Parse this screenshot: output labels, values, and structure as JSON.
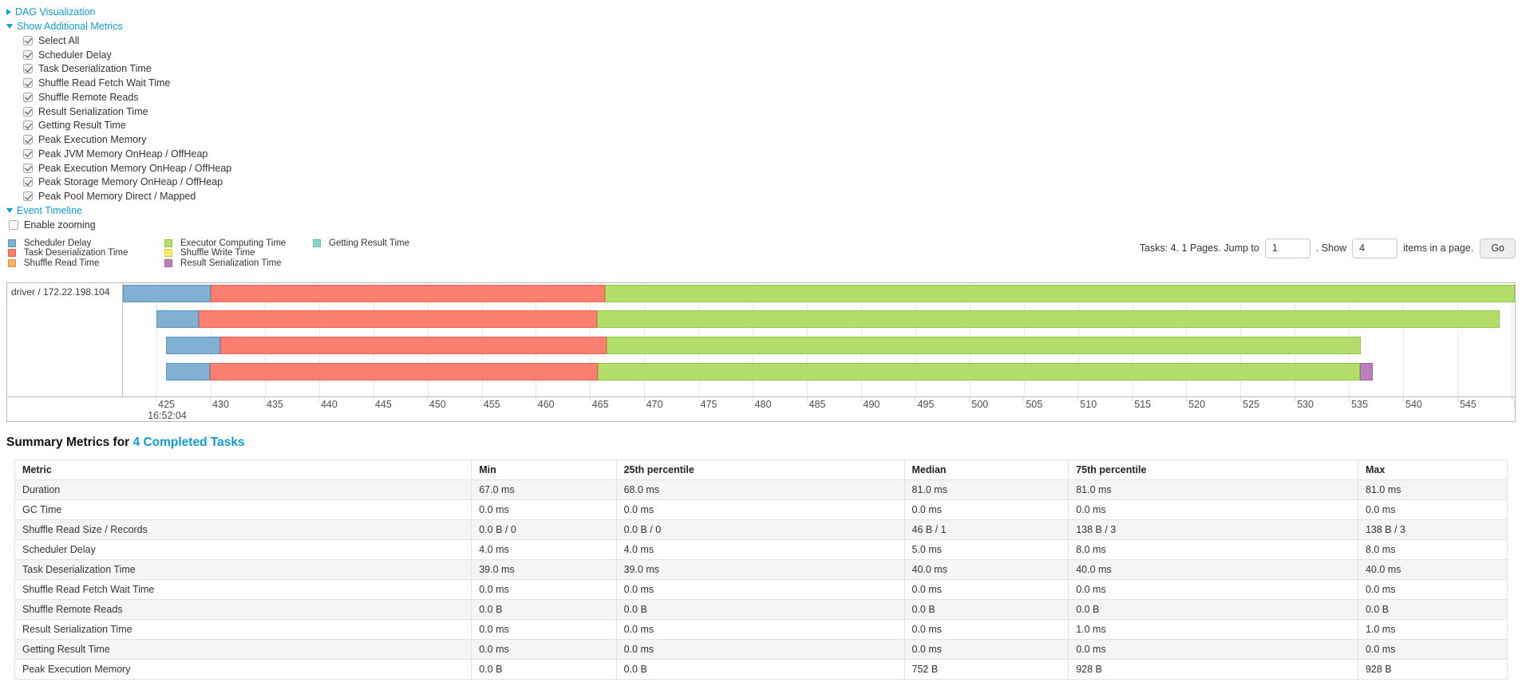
{
  "theme": {
    "link_color": "#0f9dd6"
  },
  "toggles": {
    "dag_label": "DAG Visualization",
    "metrics_label": "Show Additional Metrics",
    "timeline_label": "Event Timeline"
  },
  "metrics_panel": {
    "items": [
      {
        "label": "Select All",
        "checked": true
      },
      {
        "label": "Scheduler Delay",
        "checked": true
      },
      {
        "label": "Task Deserialization Time",
        "checked": true
      },
      {
        "label": "Shuffle Read Fetch Wait Time",
        "checked": true
      },
      {
        "label": "Shuffle Remote Reads",
        "checked": true
      },
      {
        "label": "Result Serialization Time",
        "checked": true
      },
      {
        "label": "Getting Result Time",
        "checked": true
      },
      {
        "label": "Peak Execution Memory",
        "checked": true
      },
      {
        "label": "Peak JVM Memory OnHeap / OffHeap",
        "checked": true
      },
      {
        "label": "Peak Execution Memory OnHeap / OffHeap",
        "checked": true
      },
      {
        "label": "Peak Storage Memory OnHeap / OffHeap",
        "checked": true
      },
      {
        "label": "Peak Pool Memory Direct / Mapped",
        "checked": true
      }
    ]
  },
  "enable_zooming": {
    "label": "Enable zooming",
    "checked": false
  },
  "legend": [
    {
      "key": "scheduler_delay",
      "label": "Scheduler Delay"
    },
    {
      "key": "task_deserialization",
      "label": "Task Deserialization Time"
    },
    {
      "key": "shuffle_read",
      "label": "Shuffle Read Time"
    },
    {
      "key": "executor_computing",
      "label": "Executor Computing Time"
    },
    {
      "key": "shuffle_write",
      "label": "Shuffle Write Time"
    },
    {
      "key": "result_serialization",
      "label": "Result Serialization Time"
    },
    {
      "key": "getting_result",
      "label": "Getting Result Time"
    }
  ],
  "pagination": {
    "tasks_text": "Tasks: 4. 1 Pages. Jump to",
    "jump_value": "1",
    "show_label": ". Show",
    "page_size": "4",
    "items_label": "items in a page.",
    "go_label": "Go"
  },
  "chart_data": {
    "type": "bar",
    "title": "Event Timeline",
    "group_label": "driver / 172.22.198.104",
    "axis": {
      "min": 421.9,
      "max": 550.3,
      "tick_min": 425,
      "tick_max": 550,
      "tick_step": 5,
      "time_label": "16:52:04",
      "time_label_tick": 425,
      "unit": "ms within 16:52:04"
    },
    "palette": {
      "scheduler_delay": {
        "fill": "#80B1D3",
        "border": "#5e94bd"
      },
      "task_deserialization": {
        "fill": "#FB8072",
        "border": "#ea6254"
      },
      "shuffle_read": {
        "fill": "#FDB462",
        "border": "#e8953a"
      },
      "executor_computing": {
        "fill": "#B3DE69",
        "border": "#8fc73e"
      },
      "shuffle_write": {
        "fill": "#FFED6F",
        "border": "#e0cc3c"
      },
      "result_serialization": {
        "fill": "#BC80BD",
        "border": "#a25fa3"
      },
      "getting_result": {
        "fill": "#8DD3C7",
        "border": "#5fbfae"
      }
    },
    "tasks": [
      {
        "segments": [
          {
            "key": "scheduler_delay",
            "start": 421.9,
            "end": 430.0
          },
          {
            "key": "task_deserialization",
            "start": 430.0,
            "end": 466.4
          },
          {
            "key": "executor_computing",
            "start": 466.4,
            "end": 550.3
          }
        ]
      },
      {
        "segments": [
          {
            "key": "scheduler_delay",
            "start": 425.0,
            "end": 428.9
          },
          {
            "key": "task_deserialization",
            "start": 428.9,
            "end": 465.6
          },
          {
            "key": "executor_computing",
            "start": 465.6,
            "end": 548.9
          }
        ]
      },
      {
        "segments": [
          {
            "key": "scheduler_delay",
            "start": 425.9,
            "end": 430.9
          },
          {
            "key": "task_deserialization",
            "start": 430.9,
            "end": 466.5
          },
          {
            "key": "executor_computing",
            "start": 466.5,
            "end": 536.1
          }
        ]
      },
      {
        "segments": [
          {
            "key": "scheduler_delay",
            "start": 425.9,
            "end": 429.9
          },
          {
            "key": "task_deserialization",
            "start": 429.9,
            "end": 465.7
          },
          {
            "key": "executor_computing",
            "start": 465.7,
            "end": 536.0
          },
          {
            "key": "result_serialization",
            "start": 536.0,
            "end": 537.2
          }
        ]
      }
    ]
  },
  "summary": {
    "title_prefix": "Summary Metrics for",
    "title_link": "4 Completed Tasks",
    "columns": [
      "Metric",
      "Min",
      "25th percentile",
      "Median",
      "75th percentile",
      "Max"
    ],
    "rows": [
      [
        "Duration",
        "67.0 ms",
        "68.0 ms",
        "81.0 ms",
        "81.0 ms",
        "81.0 ms"
      ],
      [
        "GC Time",
        "0.0 ms",
        "0.0 ms",
        "0.0 ms",
        "0.0 ms",
        "0.0 ms"
      ],
      [
        "Shuffle Read Size / Records",
        "0.0 B / 0",
        "0.0 B / 0",
        "46 B / 1",
        "138 B / 3",
        "138 B / 3"
      ],
      [
        "Scheduler Delay",
        "4.0 ms",
        "4.0 ms",
        "5.0 ms",
        "8.0 ms",
        "8.0 ms"
      ],
      [
        "Task Deserialization Time",
        "39.0 ms",
        "39.0 ms",
        "40.0 ms",
        "40.0 ms",
        "40.0 ms"
      ],
      [
        "Shuffle Read Fetch Wait Time",
        "0.0 ms",
        "0.0 ms",
        "0.0 ms",
        "0.0 ms",
        "0.0 ms"
      ],
      [
        "Shuffle Remote Reads",
        "0.0 B",
        "0.0 B",
        "0.0 B",
        "0.0 B",
        "0.0 B"
      ],
      [
        "Result Serialization Time",
        "0.0 ms",
        "0.0 ms",
        "0.0 ms",
        "1.0 ms",
        "1.0 ms"
      ],
      [
        "Getting Result Time",
        "0.0 ms",
        "0.0 ms",
        "0.0 ms",
        "0.0 ms",
        "0.0 ms"
      ],
      [
        "Peak Execution Memory",
        "0.0 B",
        "0.0 B",
        "752 B",
        "928 B",
        "928 B"
      ]
    ],
    "col_widths": [
      "30.6%",
      "9.7%",
      "19.3%",
      "11.0%",
      "19.4%",
      "10.0%"
    ]
  }
}
